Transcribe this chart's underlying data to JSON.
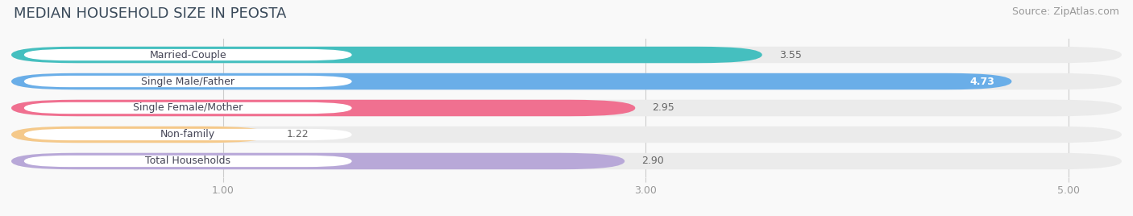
{
  "title": "MEDIAN HOUSEHOLD SIZE IN PEOSTA",
  "source": "Source: ZipAtlas.com",
  "categories": [
    "Married-Couple",
    "Single Male/Father",
    "Single Female/Mother",
    "Non-family",
    "Total Households"
  ],
  "values": [
    3.55,
    4.73,
    2.95,
    1.22,
    2.9
  ],
  "bar_colors": [
    "#45bfbf",
    "#6aaee8",
    "#f07090",
    "#f5c98a",
    "#b8a8d8"
  ],
  "track_color": "#ebebeb",
  "xlim": [
    0,
    5.25
  ],
  "xaxis_min": 1.0,
  "xticks": [
    1.0,
    3.0,
    5.0
  ],
  "xticklabels": [
    "1.00",
    "3.00",
    "5.00"
  ],
  "title_fontsize": 13,
  "source_fontsize": 9,
  "label_fontsize": 9,
  "value_fontsize": 9,
  "bar_height": 0.62,
  "background_color": "#f9f9f9",
  "label_bg_color": "#ffffff"
}
